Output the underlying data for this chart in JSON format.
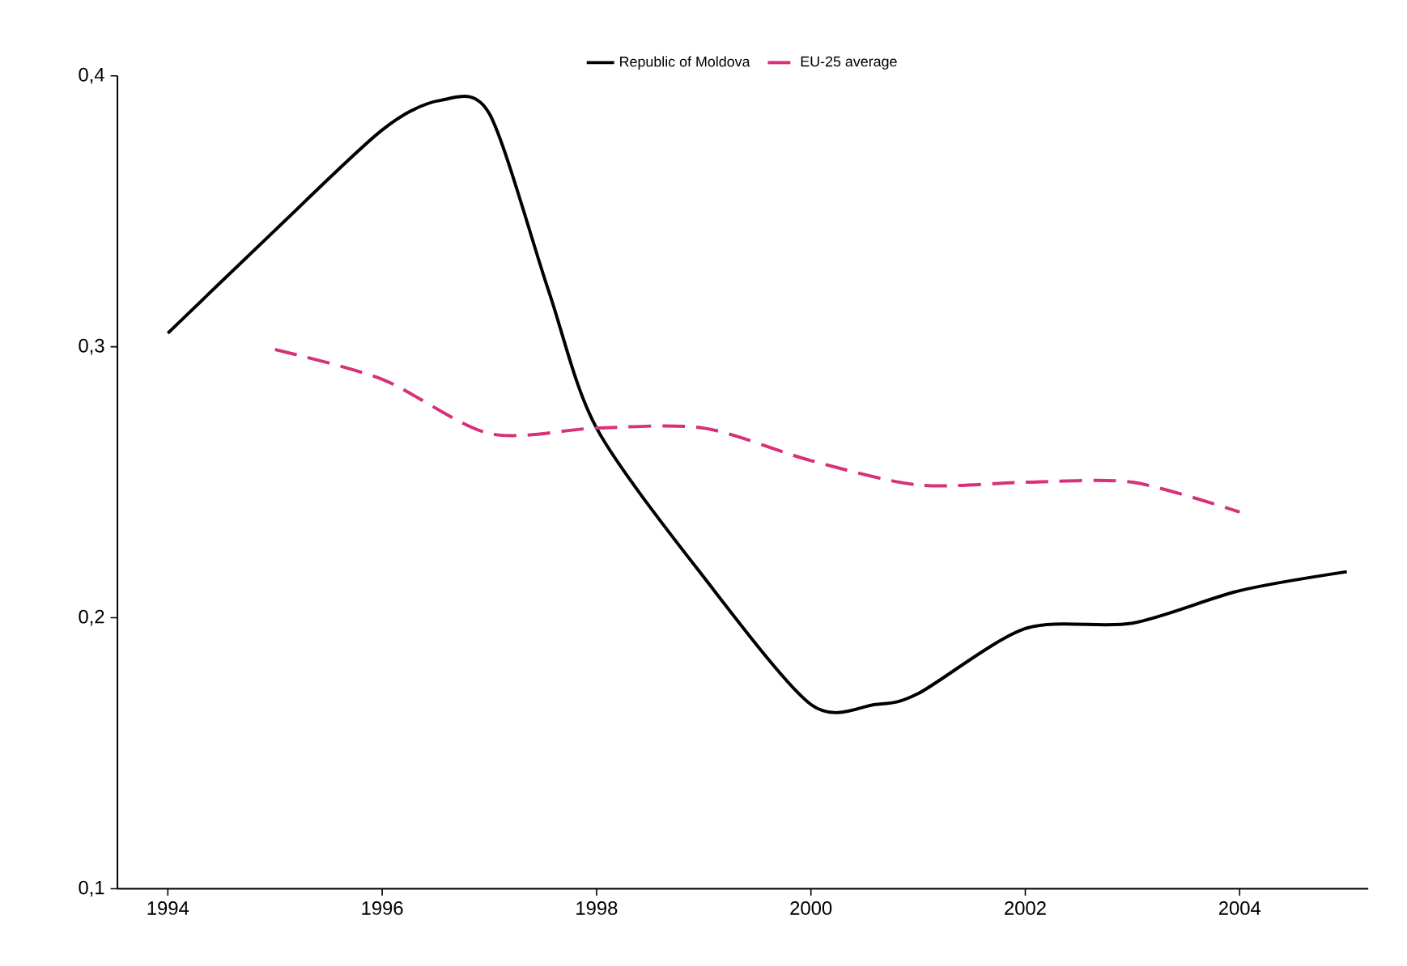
{
  "chart_data": {
    "type": "line",
    "xlim": [
      1993.53,
      2005.2
    ],
    "ylim": [
      0.1,
      0.4
    ],
    "xticks": [
      1994,
      1996,
      1998,
      2000,
      2002,
      2004
    ],
    "yticks": [
      {
        "value": 0.1,
        "label": "0,1"
      },
      {
        "value": 0.2,
        "label": "0,2"
      },
      {
        "value": 0.3,
        "label": "0,3"
      },
      {
        "value": 0.4,
        "label": "0,4"
      }
    ],
    "grid": false,
    "legend": "top",
    "marker": "none",
    "series": [
      {
        "name": "Republic of Moldova",
        "color": "#000000",
        "line_style": "solid",
        "x": [
          1994,
          1995,
          1996,
          1996.55,
          1997,
          1997.55,
          1998,
          1999,
          2000,
          2000.6,
          2001,
          2002,
          2003,
          2004,
          2005
        ],
        "values": [
          0.305,
          0.343,
          0.38,
          0.391,
          0.386,
          0.321,
          0.27,
          0.215,
          0.168,
          0.168,
          0.172,
          0.196,
          0.198,
          0.21,
          0.217
        ]
      },
      {
        "name": "EU-25 average",
        "color": "#d6317a",
        "line_style": "dashed",
        "x": [
          1995,
          1996,
          1997,
          1998,
          1999,
          2000,
          2001,
          2002,
          2003,
          2004
        ],
        "values": [
          0.299,
          0.288,
          0.268,
          0.27,
          0.27,
          0.258,
          0.249,
          0.25,
          0.25,
          0.239
        ]
      }
    ]
  }
}
